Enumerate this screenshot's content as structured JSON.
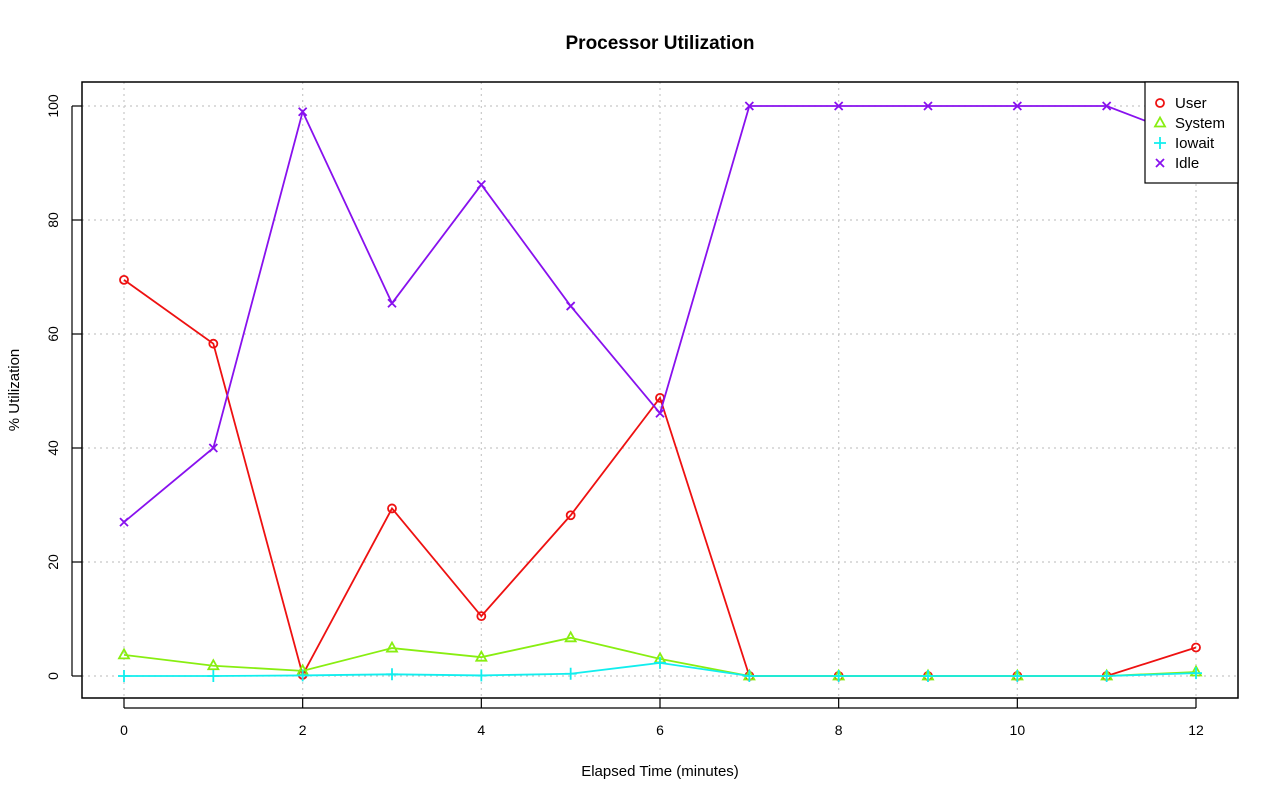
{
  "chart_data": {
    "type": "line",
    "title": "Processor Utilization",
    "xlabel": "Elapsed Time (minutes)",
    "ylabel": "% Utilization",
    "x": [
      0,
      1,
      2,
      3,
      4,
      5,
      6,
      7,
      8,
      9,
      10,
      11,
      12
    ],
    "xlim": [
      0,
      12
    ],
    "ylim": [
      0,
      100
    ],
    "x_ticks": [
      "0",
      "2",
      "4",
      "6",
      "8",
      "10",
      "12"
    ],
    "y_ticks": [
      "0",
      "20",
      "40",
      "60",
      "80",
      "100"
    ],
    "grid": true,
    "legend_position": "top-right",
    "series": [
      {
        "name": "User",
        "color": "#ee1111",
        "marker": "circle",
        "values": [
          69.5,
          58.3,
          0.2,
          29.4,
          10.5,
          28.2,
          48.8,
          0,
          0,
          0,
          0,
          0,
          5.0
        ]
      },
      {
        "name": "System",
        "color": "#88ee11",
        "marker": "triangle",
        "values": [
          3.7,
          1.8,
          0.9,
          4.9,
          3.3,
          6.7,
          3.0,
          0,
          0,
          0,
          0,
          0,
          0.7
        ]
      },
      {
        "name": "Iowait",
        "color": "#11eeee",
        "marker": "plus",
        "values": [
          0,
          0,
          0.1,
          0.3,
          0.1,
          0.4,
          2.3,
          0,
          0,
          0,
          0,
          0,
          0.5
        ]
      },
      {
        "name": "Idle",
        "color": "#8811ee",
        "marker": "x",
        "values": [
          27.0,
          40.0,
          99.0,
          65.4,
          86.2,
          64.9,
          46.1,
          100,
          100,
          100,
          100,
          100,
          94.0
        ]
      }
    ]
  }
}
